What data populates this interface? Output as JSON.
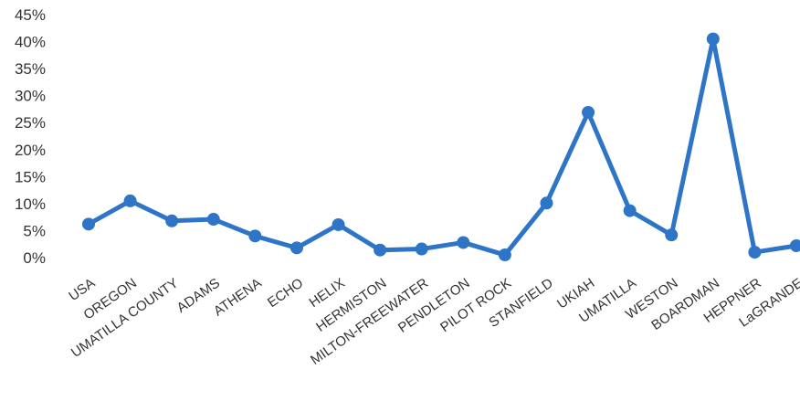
{
  "chart_data": {
    "type": "line",
    "title": "",
    "xlabel": "",
    "ylabel": "",
    "ylim": [
      0,
      45
    ],
    "y_ticks": [
      "0%",
      "5%",
      "10%",
      "15%",
      "20%",
      "25%",
      "30%",
      "35%",
      "40%",
      "45%"
    ],
    "grid": false,
    "legend": "none",
    "categories": [
      "USA",
      "OREGON",
      "UMATILLA COUNTY",
      "ADAMS",
      "ATHENA",
      "ECHO",
      "HELIX",
      "HERMISTON",
      "MILTON-FREEWATER",
      "PENDLETON",
      "PILOT ROCK",
      "STANFIELD",
      "UKIAH",
      "UMATILLA",
      "WESTON",
      "BOARDMAN",
      "HEPPNER",
      "LaGRANDE"
    ],
    "series": [
      {
        "values": [
          6.2,
          10.5,
          6.8,
          7.1,
          4.0,
          1.8,
          6.1,
          1.4,
          1.6,
          2.8,
          0.5,
          10.1,
          26.9,
          8.7,
          4.2,
          40.5,
          1.0,
          2.2
        ],
        "color": "#2e75c7"
      }
    ]
  }
}
